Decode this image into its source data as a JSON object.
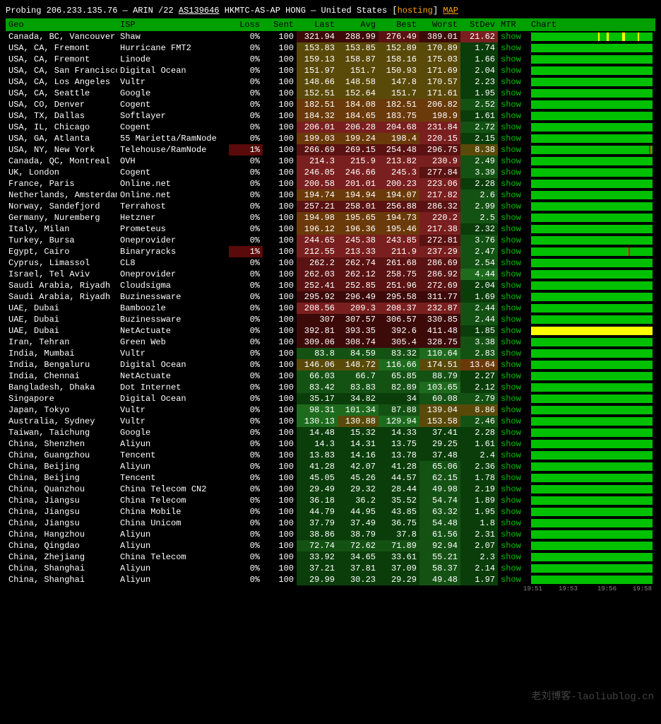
{
  "header": {
    "prefix": "Probing",
    "ip": "206.233.135.76",
    "dash": "—",
    "registry": "ARIN",
    "cidr": "/22",
    "asn": "AS139646",
    "asn_desc": "HKMTC-AS-AP HONG",
    "dash2": "—",
    "country": "United States",
    "hosting_label": "hosting",
    "map_label": "MAP"
  },
  "columns": {
    "geo": "Geo",
    "isp": "ISP",
    "loss": "Loss",
    "sent": "Sent",
    "last": "Last",
    "avg": "Avg",
    "best": "Best",
    "worst": "Worst",
    "stdev": "StDev",
    "mtr": "MTR",
    "chart": "Chart"
  },
  "mtr_show": "show",
  "watermark": "老刘博客-laoliublog.cn",
  "time_marks": [
    "19:51",
    "19:53",
    "19:56",
    "19:58"
  ],
  "chart_low_color": "#003000",
  "chart_high_color": "#00c000",
  "heat_colors": {
    "green_dark": "#0a3d0a",
    "green_mid": "#145214",
    "green_light": "#1e6b1e",
    "yellow": "#5a4a0a",
    "orange": "#6b3a0a",
    "red_light": "#7a1f1f",
    "red_mid": "#5a1212",
    "red_dark": "#3d0a0a",
    "loss_warn": "#5a0a0a"
  },
  "rows": [
    {
      "geo": "Canada, BC, Vancouver",
      "isp": "Shaw",
      "loss": "0%",
      "sent": "100",
      "last": "321.94",
      "avg": "288.99",
      "best": "276.49",
      "worst": "389.01",
      "stdev": "21.62",
      "heat": [
        8,
        8,
        7,
        8,
        6
      ],
      "ticks": [
        55,
        62,
        63,
        75,
        76,
        88
      ]
    },
    {
      "geo": "USA, CA, Fremont",
      "isp": "Hurricane FMT2",
      "loss": "0%",
      "sent": "100",
      "last": "153.83",
      "avg": "153.85",
      "best": "152.89",
      "worst": "170.89",
      "stdev": "1.74",
      "heat": [
        4,
        4,
        4,
        4,
        1
      ]
    },
    {
      "geo": "USA, CA, Fremont",
      "isp": "Linode",
      "loss": "0%",
      "sent": "100",
      "last": "159.13",
      "avg": "158.87",
      "best": "158.16",
      "worst": "175.03",
      "stdev": "1.66",
      "heat": [
        4,
        4,
        4,
        4,
        1
      ]
    },
    {
      "geo": "USA, CA, San Francisco",
      "isp": "Digital Ocean",
      "loss": "0%",
      "sent": "100",
      "last": "151.97",
      "avg": "151.7",
      "best": "150.93",
      "worst": "171.69",
      "stdev": "2.04",
      "heat": [
        4,
        4,
        4,
        4,
        1
      ]
    },
    {
      "geo": "USA, CA, Los Angeles",
      "isp": "Vultr",
      "loss": "0%",
      "sent": "100",
      "last": "148.66",
      "avg": "148.58",
      "best": "147.8",
      "worst": "170.57",
      "stdev": "2.23",
      "heat": [
        4,
        4,
        4,
        4,
        1
      ]
    },
    {
      "geo": "USA, CA, Seattle",
      "isp": "Google",
      "loss": "0%",
      "sent": "100",
      "last": "152.51",
      "avg": "152.64",
      "best": "151.7",
      "worst": "171.61",
      "stdev": "1.95",
      "heat": [
        4,
        4,
        4,
        4,
        1
      ]
    },
    {
      "geo": "USA, CO, Denver",
      "isp": "Cogent",
      "loss": "0%",
      "sent": "100",
      "last": "182.51",
      "avg": "184.08",
      "best": "182.51",
      "worst": "206.82",
      "stdev": "2.52",
      "heat": [
        5,
        5,
        5,
        5,
        2
      ]
    },
    {
      "geo": "USA, TX, Dallas",
      "isp": "Softlayer",
      "loss": "0%",
      "sent": "100",
      "last": "184.32",
      "avg": "184.65",
      "best": "183.75",
      "worst": "198.9",
      "stdev": "1.61",
      "heat": [
        5,
        5,
        5,
        5,
        1
      ]
    },
    {
      "geo": "USA, IL, Chicago",
      "isp": "Cogent",
      "loss": "0%",
      "sent": "100",
      "last": "206.01",
      "avg": "206.28",
      "best": "204.68",
      "worst": "231.84",
      "stdev": "2.72",
      "heat": [
        6,
        6,
        6,
        6,
        2
      ]
    },
    {
      "geo": "USA, GA, Atlanta",
      "isp": "55 Marietta/RamNode",
      "loss": "0%",
      "sent": "100",
      "last": "199.03",
      "avg": "199.24",
      "best": "198.4",
      "worst": "220.15",
      "stdev": "2.15",
      "heat": [
        5,
        5,
        5,
        6,
        1
      ]
    },
    {
      "geo": "USA, NY, New York",
      "isp": "Telehouse/RamNode",
      "loss": "1%",
      "sent": "100",
      "last": "266.69",
      "avg": "269.15",
      "best": "254.48",
      "worst": "296.75",
      "stdev": "8.38",
      "heat": [
        7,
        7,
        7,
        7,
        4
      ],
      "loss_bg": true,
      "ticks_red": [
        97
      ]
    },
    {
      "geo": "Canada, QC, Montreal",
      "isp": "OVH",
      "loss": "0%",
      "sent": "100",
      "last": "214.3",
      "avg": "215.9",
      "best": "213.82",
      "worst": "230.9",
      "stdev": "2.49",
      "heat": [
        6,
        6,
        6,
        6,
        2
      ]
    },
    {
      "geo": "UK, London",
      "isp": "Cogent",
      "loss": "0%",
      "sent": "100",
      "last": "246.05",
      "avg": "246.66",
      "best": "245.3",
      "worst": "277.84",
      "stdev": "3.39",
      "heat": [
        6,
        6,
        6,
        7,
        2
      ]
    },
    {
      "geo": "France, Paris",
      "isp": "Online.net",
      "loss": "0%",
      "sent": "100",
      "last": "200.58",
      "avg": "201.01",
      "best": "200.23",
      "worst": "223.06",
      "stdev": "2.28",
      "heat": [
        6,
        6,
        6,
        6,
        1
      ]
    },
    {
      "geo": "Netherlands, Amsterdam",
      "isp": "Online.net",
      "loss": "0%",
      "sent": "100",
      "last": "194.74",
      "avg": "194.94",
      "best": "194.07",
      "worst": "217.82",
      "stdev": "2.6",
      "heat": [
        5,
        5,
        5,
        6,
        2
      ]
    },
    {
      "geo": "Norway, Sandefjord",
      "isp": "Terrahost",
      "loss": "0%",
      "sent": "100",
      "last": "257.21",
      "avg": "258.01",
      "best": "256.88",
      "worst": "286.32",
      "stdev": "2.99",
      "heat": [
        7,
        7,
        7,
        7,
        2
      ]
    },
    {
      "geo": "Germany, Nuremberg",
      "isp": "Hetzner",
      "loss": "0%",
      "sent": "100",
      "last": "194.98",
      "avg": "195.65",
      "best": "194.73",
      "worst": "220.2",
      "stdev": "2.5",
      "heat": [
        5,
        5,
        5,
        6,
        2
      ]
    },
    {
      "geo": "Italy, Milan",
      "isp": "Prometeus",
      "loss": "0%",
      "sent": "100",
      "last": "196.12",
      "avg": "196.36",
      "best": "195.46",
      "worst": "217.38",
      "stdev": "2.32",
      "heat": [
        5,
        5,
        5,
        6,
        1
      ]
    },
    {
      "geo": "Turkey, Bursa",
      "isp": "Oneprovider",
      "loss": "0%",
      "sent": "100",
      "last": "244.65",
      "avg": "245.38",
      "best": "243.85",
      "worst": "272.81",
      "stdev": "3.76",
      "heat": [
        6,
        6,
        6,
        7,
        2
      ]
    },
    {
      "geo": "Egypt, Cairo",
      "isp": "Binaryracks",
      "loss": "1%",
      "sent": "100",
      "last": "212.55",
      "avg": "213.33",
      "best": "211.9",
      "worst": "237.29",
      "stdev": "2.47",
      "heat": [
        6,
        6,
        6,
        6,
        2
      ],
      "loss_bg": true,
      "ticks_red": [
        80
      ]
    },
    {
      "geo": "Cyprus, Limassol",
      "isp": "CL8",
      "loss": "0%",
      "sent": "100",
      "last": "262.2",
      "avg": "262.74",
      "best": "261.68",
      "worst": "286.69",
      "stdev": "2.54",
      "heat": [
        7,
        7,
        7,
        7,
        2
      ]
    },
    {
      "geo": "Israel, Tel Aviv",
      "isp": "Oneprovider",
      "loss": "0%",
      "sent": "100",
      "last": "262.03",
      "avg": "262.12",
      "best": "258.75",
      "worst": "286.92",
      "stdev": "4.44",
      "heat": [
        7,
        7,
        7,
        7,
        3
      ]
    },
    {
      "geo": "Saudi Arabia, Riyadh",
      "isp": "Cloudsigma",
      "loss": "0%",
      "sent": "100",
      "last": "252.41",
      "avg": "252.85",
      "best": "251.96",
      "worst": "272.69",
      "stdev": "2.04",
      "heat": [
        7,
        7,
        7,
        7,
        1
      ]
    },
    {
      "geo": "Saudi Arabia, Riyadh",
      "isp": "Buzinessware",
      "loss": "0%",
      "sent": "100",
      "last": "295.92",
      "avg": "296.49",
      "best": "295.58",
      "worst": "311.77",
      "stdev": "1.69",
      "heat": [
        8,
        8,
        8,
        8,
        1
      ]
    },
    {
      "geo": "UAE, Dubai",
      "isp": "Bamboozle",
      "loss": "0%",
      "sent": "100",
      "last": "208.56",
      "avg": "209.3",
      "best": "208.37",
      "worst": "232.87",
      "stdev": "2.44",
      "heat": [
        6,
        6,
        6,
        6,
        2
      ]
    },
    {
      "geo": "UAE, Dubai",
      "isp": "Buzinessware",
      "loss": "0%",
      "sent": "100",
      "last": "307",
      "avg": "307.57",
      "best": "306.57",
      "worst": "330.85",
      "stdev": "2.44",
      "heat": [
        8,
        8,
        8,
        8,
        2
      ]
    },
    {
      "geo": "UAE, Dubai",
      "isp": "NetActuate",
      "loss": "0%",
      "sent": "100",
      "last": "392.81",
      "avg": "393.35",
      "best": "392.6",
      "worst": "411.48",
      "stdev": "1.85",
      "heat": [
        9,
        9,
        9,
        9,
        1
      ],
      "chart_full_yellow": true
    },
    {
      "geo": "Iran, Tehran",
      "isp": "Green Web",
      "loss": "0%",
      "sent": "100",
      "last": "309.06",
      "avg": "308.74",
      "best": "305.4",
      "worst": "328.75",
      "stdev": "3.38",
      "heat": [
        8,
        8,
        8,
        8,
        2
      ]
    },
    {
      "geo": "India, Mumbai",
      "isp": "Vultr",
      "loss": "0%",
      "sent": "100",
      "last": "83.8",
      "avg": "84.59",
      "best": "83.32",
      "worst": "110.64",
      "stdev": "2.83",
      "heat": [
        2,
        2,
        2,
        3,
        2
      ]
    },
    {
      "geo": "India, Bengaluru",
      "isp": "Digital Ocean",
      "loss": "0%",
      "sent": "100",
      "last": "146.06",
      "avg": "148.72",
      "best": "116.66",
      "worst": "174.51",
      "stdev": "13.64",
      "heat": [
        4,
        4,
        3,
        4,
        5
      ]
    },
    {
      "geo": "India, Chennai",
      "isp": "NetActuate",
      "loss": "0%",
      "sent": "100",
      "last": "66.03",
      "avg": "66.7",
      "best": "65.85",
      "worst": "88.79",
      "stdev": "2.27",
      "heat": [
        2,
        2,
        2,
        2,
        1
      ]
    },
    {
      "geo": "Bangladesh, Dhaka",
      "isp": "Dot Internet",
      "loss": "0%",
      "sent": "100",
      "last": "83.42",
      "avg": "83.83",
      "best": "82.89",
      "worst": "103.65",
      "stdev": "2.12",
      "heat": [
        2,
        2,
        2,
        3,
        1
      ]
    },
    {
      "geo": "Singapore",
      "isp": "Digital Ocean",
      "loss": "0%",
      "sent": "100",
      "last": "35.17",
      "avg": "34.82",
      "best": "34",
      "worst": "60.08",
      "stdev": "2.79",
      "heat": [
        1,
        1,
        1,
        2,
        2
      ]
    },
    {
      "geo": "Japan, Tokyo",
      "isp": "Vultr",
      "loss": "0%",
      "sent": "100",
      "last": "98.31",
      "avg": "101.34",
      "best": "87.88",
      "worst": "139.04",
      "stdev": "8.86",
      "heat": [
        3,
        3,
        2,
        4,
        4
      ]
    },
    {
      "geo": "Australia, Sydney",
      "isp": "Vultr",
      "loss": "0%",
      "sent": "100",
      "last": "130.13",
      "avg": "130.88",
      "best": "129.94",
      "worst": "153.58",
      "stdev": "2.46",
      "heat": [
        3,
        4,
        3,
        4,
        2
      ]
    },
    {
      "geo": "Taiwan, Taichung",
      "isp": "Google",
      "loss": "0%",
      "sent": "100",
      "last": "14.48",
      "avg": "15.32",
      "best": "14.33",
      "worst": "37.41",
      "stdev": "2.28",
      "heat": [
        1,
        1,
        1,
        1,
        1
      ]
    },
    {
      "geo": "China, Shenzhen",
      "isp": "Aliyun",
      "loss": "0%",
      "sent": "100",
      "last": "14.3",
      "avg": "14.31",
      "best": "13.75",
      "worst": "29.25",
      "stdev": "1.61",
      "heat": [
        1,
        1,
        1,
        1,
        1
      ]
    },
    {
      "geo": "China, Guangzhou",
      "isp": "Tencent",
      "loss": "0%",
      "sent": "100",
      "last": "13.83",
      "avg": "14.16",
      "best": "13.78",
      "worst": "37.48",
      "stdev": "2.4",
      "heat": [
        1,
        1,
        1,
        1,
        1
      ]
    },
    {
      "geo": "China, Beijing",
      "isp": "Aliyun",
      "loss": "0%",
      "sent": "100",
      "last": "41.28",
      "avg": "42.07",
      "best": "41.28",
      "worst": "65.06",
      "stdev": "2.36",
      "heat": [
        1,
        1,
        1,
        2,
        1
      ]
    },
    {
      "geo": "China, Beijing",
      "isp": "Tencent",
      "loss": "0%",
      "sent": "100",
      "last": "45.05",
      "avg": "45.26",
      "best": "44.57",
      "worst": "62.15",
      "stdev": "1.78",
      "heat": [
        1,
        1,
        1,
        2,
        1
      ]
    },
    {
      "geo": "China, Quanzhou",
      "isp": "China Telecom CN2",
      "loss": "0%",
      "sent": "100",
      "last": "29.49",
      "avg": "29.32",
      "best": "28.44",
      "worst": "49.98",
      "stdev": "2.19",
      "heat": [
        1,
        1,
        1,
        2,
        1
      ]
    },
    {
      "geo": "China, Jiangsu",
      "isp": "China Telecom",
      "loss": "0%",
      "sent": "100",
      "last": "36.18",
      "avg": "36.2",
      "best": "35.52",
      "worst": "54.74",
      "stdev": "1.89",
      "heat": [
        1,
        1,
        1,
        2,
        1
      ]
    },
    {
      "geo": "China, Jiangsu",
      "isp": "China Mobile",
      "loss": "0%",
      "sent": "100",
      "last": "44.79",
      "avg": "44.95",
      "best": "43.85",
      "worst": "63.32",
      "stdev": "1.95",
      "heat": [
        1,
        1,
        1,
        2,
        1
      ]
    },
    {
      "geo": "China, Jiangsu",
      "isp": "China Unicom",
      "loss": "0%",
      "sent": "100",
      "last": "37.79",
      "avg": "37.49",
      "best": "36.75",
      "worst": "54.48",
      "stdev": "1.8",
      "heat": [
        1,
        1,
        1,
        2,
        1
      ]
    },
    {
      "geo": "China, Hangzhou",
      "isp": "Aliyun",
      "loss": "0%",
      "sent": "100",
      "last": "38.86",
      "avg": "38.79",
      "best": "37.8",
      "worst": "61.56",
      "stdev": "2.31",
      "heat": [
        1,
        1,
        1,
        2,
        1
      ]
    },
    {
      "geo": "China, Qingdao",
      "isp": "Aliyun",
      "loss": "0%",
      "sent": "100",
      "last": "72.74",
      "avg": "72.62",
      "best": "71.89",
      "worst": "92.94",
      "stdev": "2.07",
      "heat": [
        2,
        2,
        2,
        2,
        1
      ]
    },
    {
      "geo": "China, Zhejiang",
      "isp": "China Telecom",
      "loss": "0%",
      "sent": "100",
      "last": "33.92",
      "avg": "34.65",
      "best": "33.61",
      "worst": "55.21",
      "stdev": "2.3",
      "heat": [
        1,
        1,
        1,
        2,
        1
      ]
    },
    {
      "geo": "China, Shanghai",
      "isp": "Aliyun",
      "loss": "0%",
      "sent": "100",
      "last": "37.21",
      "avg": "37.81",
      "best": "37.09",
      "worst": "58.37",
      "stdev": "2.14",
      "heat": [
        1,
        1,
        1,
        2,
        1
      ]
    },
    {
      "geo": "China, Shanghai",
      "isp": "Aliyun",
      "loss": "0%",
      "sent": "100",
      "last": "29.99",
      "avg": "30.23",
      "best": "29.29",
      "worst": "49.48",
      "stdev": "1.97",
      "heat": [
        1,
        1,
        1,
        2,
        1
      ]
    }
  ]
}
